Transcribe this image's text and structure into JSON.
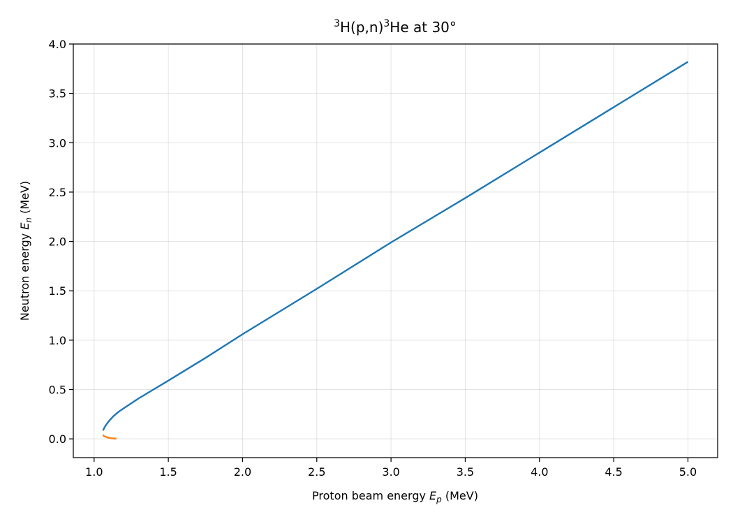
{
  "chart_data": {
    "type": "line",
    "title": {
      "sup1": "3",
      "part1": "H(p,n)",
      "sup2": "3",
      "part2": "He at 30°"
    },
    "xlabel": {
      "prefix": "Proton beam energy ",
      "var": "E",
      "sub": "p",
      "suffix": " (MeV)"
    },
    "ylabel": {
      "prefix": "Neutron energy ",
      "var": "E",
      "sub": "n",
      "suffix": " (MeV)"
    },
    "xlim": [
      0.86,
      5.2
    ],
    "ylim": [
      -0.19,
      4.0
    ],
    "xticks": [
      "1.0",
      "1.5",
      "2.0",
      "2.5",
      "3.0",
      "3.5",
      "4.0",
      "4.5",
      "5.0"
    ],
    "yticks": [
      "0.0",
      "0.5",
      "1.0",
      "1.5",
      "2.0",
      "2.5",
      "3.0",
      "3.5",
      "4.0"
    ],
    "grid": true,
    "series": [
      {
        "color": "#1f77b4",
        "x": [
          1.06,
          1.07,
          1.08,
          1.1,
          1.13,
          1.17,
          1.22,
          1.3,
          1.4,
          1.5,
          1.75,
          2.0,
          2.5,
          3.0,
          3.5,
          4.0,
          4.5,
          5.0
        ],
        "y": [
          0.085,
          0.115,
          0.14,
          0.18,
          0.23,
          0.28,
          0.33,
          0.41,
          0.5,
          0.59,
          0.82,
          1.06,
          1.52,
          1.99,
          2.44,
          2.9,
          3.36,
          3.82
        ]
      },
      {
        "color": "#ff7f0e",
        "x": [
          1.06,
          1.065,
          1.075,
          1.09,
          1.11,
          1.13,
          1.15
        ],
        "y": [
          0.04,
          0.03,
          0.022,
          0.014,
          0.008,
          0.004,
          0.002
        ]
      }
    ]
  }
}
